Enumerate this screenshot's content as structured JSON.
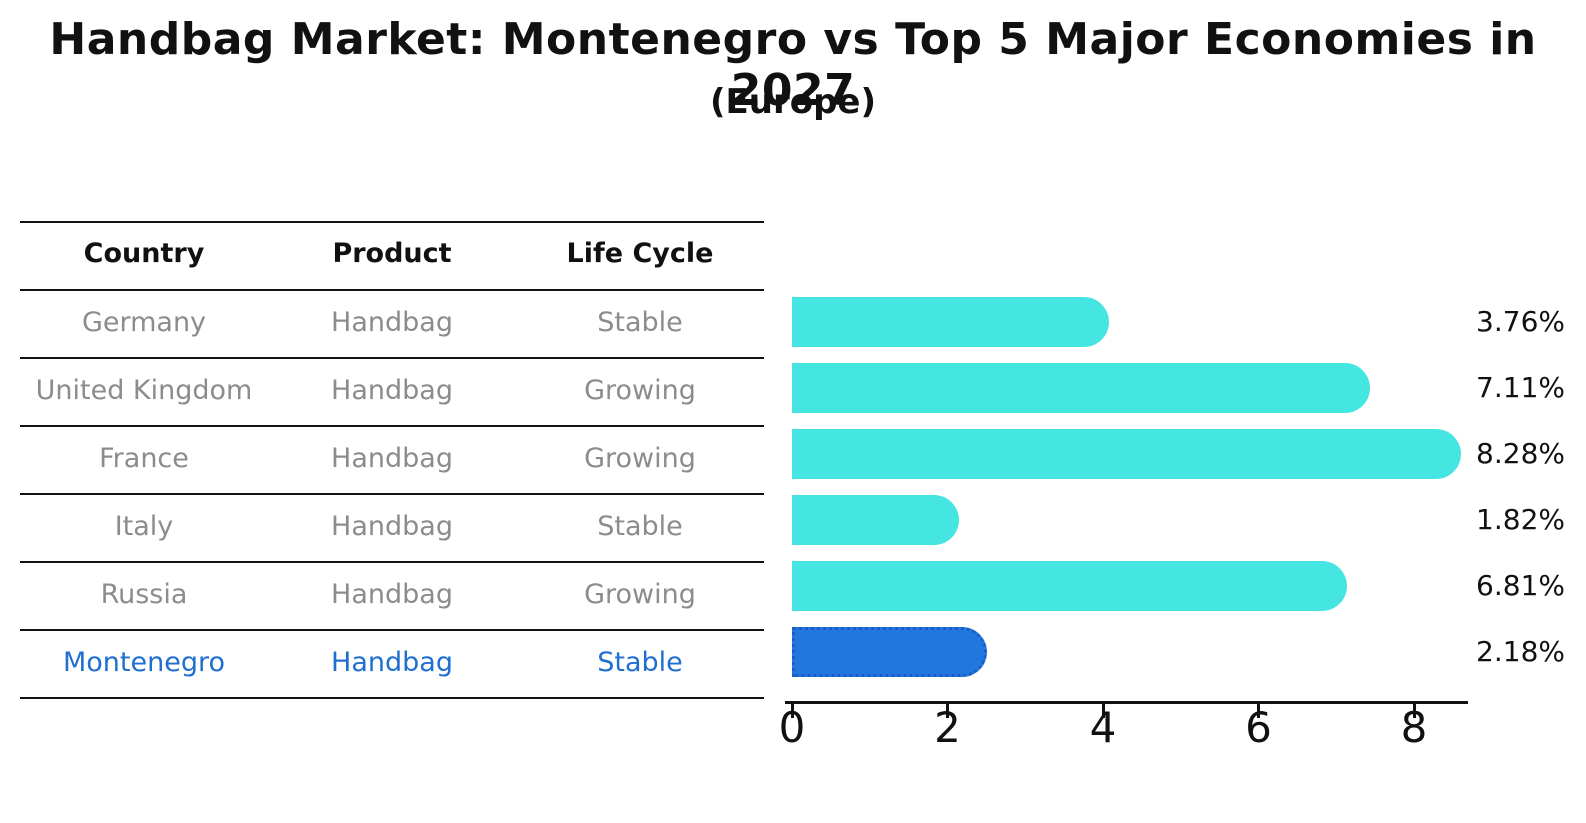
{
  "table": {
    "headers": [
      "Country",
      "Product",
      "Life Cycle"
    ],
    "rows": [
      {
        "country": "Germany",
        "product": "Handbag",
        "life_cycle": "Stable"
      },
      {
        "country": "United Kingdom",
        "product": "Handbag",
        "life_cycle": "Growing"
      },
      {
        "country": "France",
        "product": "Handbag",
        "life_cycle": "Growing"
      },
      {
        "country": "Italy",
        "product": "Handbag",
        "life_cycle": "Stable"
      },
      {
        "country": "Russia",
        "product": "Handbag",
        "life_cycle": "Growing"
      },
      {
        "country": "Montenegro",
        "product": "Handbag",
        "life_cycle": "Stable"
      }
    ],
    "highlight_row": 5
  },
  "chart_data": {
    "type": "bar",
    "orientation": "horizontal",
    "title": "Handbag Market: Montenegro vs Top 5 Major Economies in 2027",
    "subtitle": "(Europe)",
    "categories": [
      "Germany",
      "United Kingdom",
      "France",
      "Italy",
      "Russia",
      "Montenegro"
    ],
    "values": [
      3.76,
      7.11,
      8.28,
      1.82,
      6.81,
      2.18
    ],
    "value_labels": [
      "3.76%",
      "7.11%",
      "8.28%",
      "1.82%",
      "6.81%",
      "2.18%"
    ],
    "xticks": [
      0,
      2,
      4,
      6,
      8
    ],
    "xlim": [
      0,
      8.7
    ],
    "grid": false,
    "legend": null,
    "highlight_index": 5,
    "bar_color": "#45E6E2",
    "highlight_fill": "#2177DD",
    "highlight_border": "#1A5FC6",
    "row_text_color": "#8C8C8C",
    "highlight_text_color": "#1F6FD0",
    "axis_color": "#111111"
  }
}
